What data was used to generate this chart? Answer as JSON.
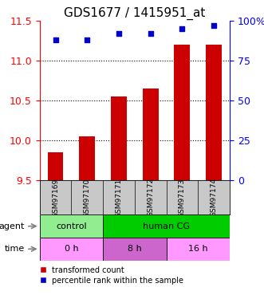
{
  "title": "GDS1677 / 1415951_at",
  "categories": [
    "GSM97169",
    "GSM97170",
    "GSM97171",
    "GSM97172",
    "GSM97173",
    "GSM97174"
  ],
  "bar_values": [
    9.85,
    10.05,
    10.55,
    10.65,
    11.2,
    11.2
  ],
  "percentile_values": [
    88,
    88,
    92,
    92,
    95,
    97
  ],
  "ylim_left": [
    9.5,
    11.5
  ],
  "ylim_right": [
    0,
    100
  ],
  "yticks_left": [
    9.5,
    10.0,
    10.5,
    11.0,
    11.5
  ],
  "yticks_right": [
    0,
    25,
    50,
    75,
    100
  ],
  "ytick_labels_right": [
    "0",
    "25",
    "50",
    "75",
    "100%"
  ],
  "bar_color": "#cc0000",
  "point_color": "#0000cc",
  "bar_bottom": 9.5,
  "agent_groups": [
    {
      "label": "control",
      "span": [
        0,
        2
      ],
      "color": "#90ee90"
    },
    {
      "label": "human CG",
      "span": [
        2,
        6
      ],
      "color": "#00cc00"
    }
  ],
  "time_groups": [
    {
      "label": "0 h",
      "span": [
        0,
        2
      ],
      "color": "#ff99ff"
    },
    {
      "label": "8 h",
      "span": [
        2,
        4
      ],
      "color": "#cc66cc"
    },
    {
      "label": "16 h",
      "span": [
        4,
        6
      ],
      "color": "#ff99ff"
    }
  ],
  "legend_items": [
    {
      "label": "transformed count",
      "color": "#cc0000"
    },
    {
      "label": "percentile rank within the sample",
      "color": "#0000cc"
    }
  ],
  "background_color": "#ffffff",
  "plot_bg_color": "#ffffff",
  "dotted_ticks": [
    10.0,
    10.5,
    11.0
  ],
  "title_fontsize": 11,
  "tick_fontsize": 9,
  "sample_bg_color": "#c8c8c8"
}
